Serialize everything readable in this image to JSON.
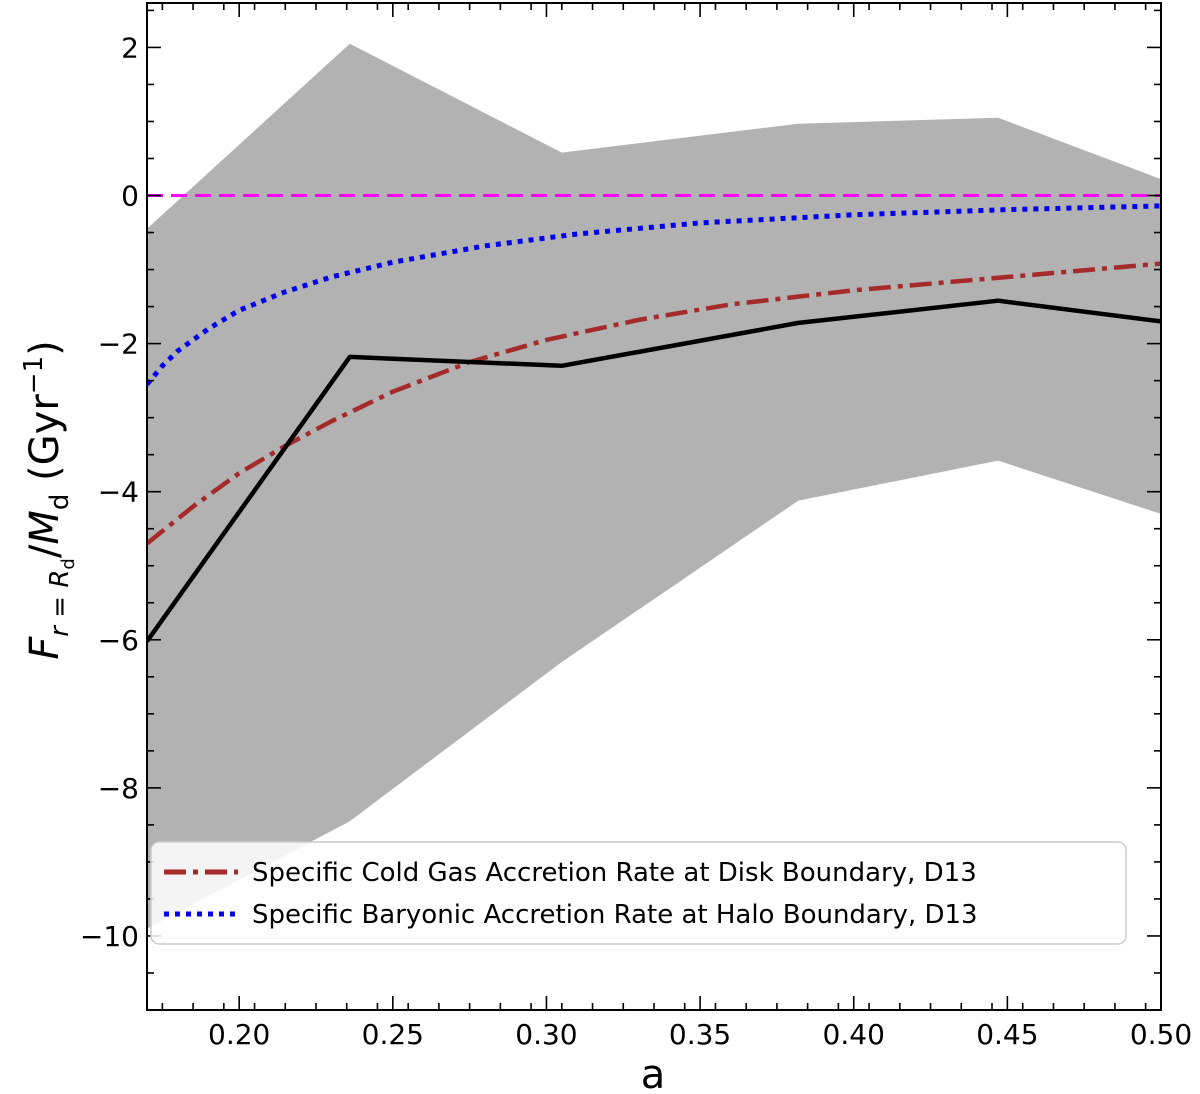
{
  "chart_data": {
    "type": "line",
    "title": "",
    "xlabel": "a",
    "ylabel": {
      "F": "F",
      "sub_r": "r",
      "sub_eq": " = ",
      "sub_R": "R",
      "sub_d": "d",
      "slash": "/",
      "M": "M",
      "M_sub": "d",
      "unit_open": " (Gyr",
      "unit_exp": "−1",
      "unit_close": ")"
    },
    "xlim": [
      0.17,
      0.5
    ],
    "ylim": [
      -11.0,
      2.6
    ],
    "xticks": [
      0.2,
      0.25,
      0.3,
      0.35,
      0.4,
      0.45,
      0.5
    ],
    "xtick_labels": [
      "0.20",
      "0.25",
      "0.30",
      "0.35",
      "0.40",
      "0.45",
      "0.50"
    ],
    "yticks": [
      2,
      0,
      -2,
      -4,
      -6,
      -8,
      -10
    ],
    "ytick_labels": [
      "2",
      "0",
      "−2",
      "−4",
      "−6",
      "−8",
      "−10"
    ],
    "grid": false,
    "legend_position": "lower-center",
    "band": {
      "name": "scatter range",
      "color": "#b2b2b2",
      "x": [
        0.17,
        0.236,
        0.305,
        0.382,
        0.447,
        0.5
      ],
      "upper": [
        -0.45,
        2.05,
        0.58,
        0.97,
        1.05,
        0.22
      ],
      "lower": [
        -9.9,
        -8.45,
        -6.3,
        -4.12,
        -3.58,
        -4.3
      ]
    },
    "series": [
      {
        "name": "Measured net flux",
        "style": "solid",
        "color": "#000000",
        "in_legend": false,
        "x": [
          0.17,
          0.236,
          0.305,
          0.382,
          0.447,
          0.5
        ],
        "y": [
          -6.02,
          -2.18,
          -2.3,
          -1.72,
          -1.42,
          -1.7
        ]
      },
      {
        "name": "Specific Cold Gas Accretion Rate at Disk Boundary, D13",
        "style": "dashdot",
        "color": "#a52a2a",
        "in_legend": true,
        "x": [
          0.17,
          0.185,
          0.2,
          0.215,
          0.23,
          0.25,
          0.275,
          0.3,
          0.33,
          0.36,
          0.4,
          0.45,
          0.5
        ],
        "y": [
          -4.7,
          -4.2,
          -3.75,
          -3.38,
          -3.05,
          -2.65,
          -2.25,
          -1.95,
          -1.68,
          -1.47,
          -1.28,
          -1.1,
          -0.92
        ]
      },
      {
        "name": "Specific Baryonic Accretion Rate at Halo Boundary, D13",
        "style": "dotted",
        "color": "#0000ee",
        "in_legend": true,
        "x": [
          0.17,
          0.175,
          0.18,
          0.19,
          0.2,
          0.215,
          0.23,
          0.25,
          0.28,
          0.31,
          0.35,
          0.4,
          0.45,
          0.5
        ],
        "y": [
          -2.55,
          -2.3,
          -2.1,
          -1.8,
          -1.55,
          -1.3,
          -1.1,
          -0.9,
          -0.68,
          -0.52,
          -0.37,
          -0.26,
          -0.19,
          -0.14
        ]
      },
      {
        "name": "Zero line",
        "style": "dashed",
        "color": "#ff00ff",
        "in_legend": false,
        "x": [
          0.17,
          0.5
        ],
        "y": [
          0,
          0
        ]
      }
    ]
  }
}
